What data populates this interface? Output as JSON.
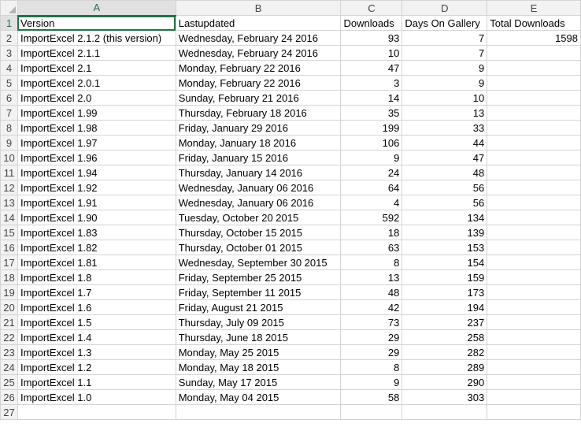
{
  "columns": [
    "A",
    "B",
    "C",
    "D",
    "E"
  ],
  "header": {
    "row": "1",
    "version": "Version",
    "lastupdated": "Lastupdated",
    "downloads": "Downloads",
    "days": "Days On Gallery",
    "total": "Total Downloads"
  },
  "total_value": "1598",
  "rows": [
    {
      "n": "2",
      "version": "ImportExcel 2.1.2 (this version)",
      "date": "Wednesday, February 24 2016",
      "downloads": "93",
      "days": "7"
    },
    {
      "n": "3",
      "version": "ImportExcel 2.1.1",
      "date": "Wednesday, February 24 2016",
      "downloads": "10",
      "days": "7"
    },
    {
      "n": "4",
      "version": "ImportExcel 2.1",
      "date": "Monday, February 22 2016",
      "downloads": "47",
      "days": "9"
    },
    {
      "n": "5",
      "version": "ImportExcel 2.0.1",
      "date": "Monday, February 22 2016",
      "downloads": "3",
      "days": "9"
    },
    {
      "n": "6",
      "version": "ImportExcel 2.0",
      "date": "Sunday, February 21 2016",
      "downloads": "14",
      "days": "10"
    },
    {
      "n": "7",
      "version": "ImportExcel 1.99",
      "date": "Thursday, February 18 2016",
      "downloads": "35",
      "days": "13"
    },
    {
      "n": "8",
      "version": "ImportExcel 1.98",
      "date": "Friday, January 29 2016",
      "downloads": "199",
      "days": "33"
    },
    {
      "n": "9",
      "version": "ImportExcel 1.97",
      "date": "Monday, January 18 2016",
      "downloads": "106",
      "days": "44"
    },
    {
      "n": "10",
      "version": "ImportExcel 1.96",
      "date": "Friday, January 15 2016",
      "downloads": "9",
      "days": "47"
    },
    {
      "n": "11",
      "version": "ImportExcel 1.94",
      "date": "Thursday, January 14 2016",
      "downloads": "24",
      "days": "48"
    },
    {
      "n": "12",
      "version": "ImportExcel 1.92",
      "date": "Wednesday, January 06 2016",
      "downloads": "64",
      "days": "56"
    },
    {
      "n": "13",
      "version": "ImportExcel 1.91",
      "date": "Wednesday, January 06 2016",
      "downloads": "4",
      "days": "56"
    },
    {
      "n": "14",
      "version": "ImportExcel 1.90",
      "date": "Tuesday, October 20 2015",
      "downloads": "592",
      "days": "134"
    },
    {
      "n": "15",
      "version": "ImportExcel 1.83",
      "date": "Thursday, October 15 2015",
      "downloads": "18",
      "days": "139"
    },
    {
      "n": "16",
      "version": "ImportExcel 1.82",
      "date": "Thursday, October 01 2015",
      "downloads": "63",
      "days": "153"
    },
    {
      "n": "17",
      "version": "ImportExcel 1.81",
      "date": "Wednesday, September 30 2015",
      "downloads": "8",
      "days": "154"
    },
    {
      "n": "18",
      "version": "ImportExcel 1.8",
      "date": "Friday, September 25 2015",
      "downloads": "13",
      "days": "159"
    },
    {
      "n": "19",
      "version": "ImportExcel 1.7",
      "date": "Friday, September 11 2015",
      "downloads": "48",
      "days": "173"
    },
    {
      "n": "20",
      "version": "ImportExcel 1.6",
      "date": "Friday, August 21 2015",
      "downloads": "42",
      "days": "194"
    },
    {
      "n": "21",
      "version": "ImportExcel 1.5",
      "date": "Thursday, July 09 2015",
      "downloads": "73",
      "days": "237"
    },
    {
      "n": "22",
      "version": "ImportExcel 1.4",
      "date": "Thursday, June 18 2015",
      "downloads": "29",
      "days": "258"
    },
    {
      "n": "23",
      "version": "ImportExcel 1.3",
      "date": "Monday, May 25 2015",
      "downloads": "29",
      "days": "282"
    },
    {
      "n": "24",
      "version": "ImportExcel 1.2",
      "date": "Monday, May 18 2015",
      "downloads": "8",
      "days": "289"
    },
    {
      "n": "25",
      "version": "ImportExcel 1.1",
      "date": "Sunday, May 17 2015",
      "downloads": "9",
      "days": "290"
    },
    {
      "n": "26",
      "version": "ImportExcel 1.0",
      "date": "Monday, May 04 2015",
      "downloads": "58",
      "days": "303"
    }
  ],
  "next_row": "27"
}
